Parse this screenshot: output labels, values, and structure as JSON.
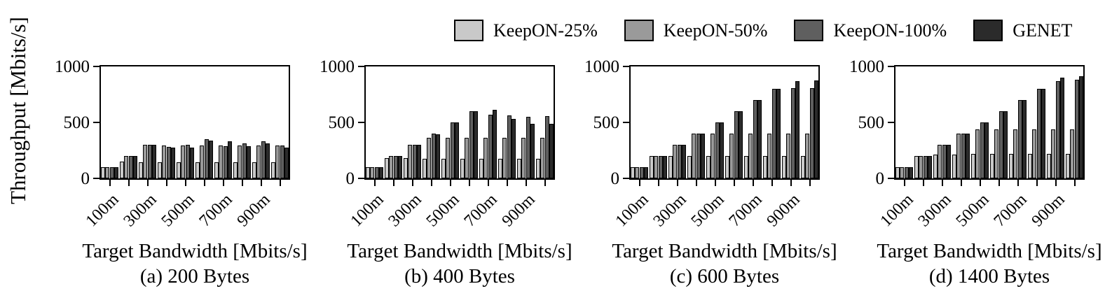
{
  "figure": {
    "ylabel": "Throughput [Mbits/s]"
  },
  "legend": {
    "items": [
      {
        "label": "KeepON-25%",
        "color": "#c9c9c9"
      },
      {
        "label": "KeepON-50%",
        "color": "#9a9a9a"
      },
      {
        "label": "KeepON-100%",
        "color": "#5f5f5f"
      },
      {
        "label": "GENET",
        "color": "#2b2b2b"
      }
    ]
  },
  "chart_data": [
    {
      "type": "bar",
      "title": "(a) 200 Bytes",
      "xlabel": "Target Bandwidth [Mbits/s]",
      "ylabel": "Throughput [Mbits/s]",
      "ylim": [
        0,
        1000
      ],
      "yticks": [
        0,
        500,
        1000
      ],
      "categories": [
        "100m",
        "200m",
        "300m",
        "400m",
        "500m",
        "600m",
        "700m",
        "800m",
        "900m",
        "1000m"
      ],
      "xtick_labels_shown": [
        "100m",
        "300m",
        "500m",
        "700m",
        "900m"
      ],
      "legend_position": "top",
      "grid": false,
      "series": [
        {
          "name": "KeepON-25%",
          "values": [
            100,
            150,
            145,
            145,
            145,
            145,
            145,
            145,
            145,
            145
          ]
        },
        {
          "name": "KeepON-50%",
          "values": [
            100,
            200,
            300,
            295,
            295,
            295,
            295,
            295,
            295,
            295
          ]
        },
        {
          "name": "KeepON-100%",
          "values": [
            100,
            200,
            300,
            280,
            300,
            350,
            290,
            315,
            330,
            295
          ]
        },
        {
          "name": "GENET",
          "values": [
            100,
            200,
            300,
            275,
            275,
            335,
            330,
            285,
            310,
            275
          ]
        }
      ]
    },
    {
      "type": "bar",
      "title": "(b) 400 Bytes",
      "xlabel": "Target Bandwidth [Mbits/s]",
      "ylabel": "Throughput [Mbits/s]",
      "ylim": [
        0,
        1000
      ],
      "yticks": [
        0,
        500,
        1000
      ],
      "categories": [
        "100m",
        "200m",
        "300m",
        "400m",
        "500m",
        "600m",
        "700m",
        "800m",
        "900m",
        "1000m"
      ],
      "xtick_labels_shown": [
        "100m",
        "300m",
        "500m",
        "700m",
        "900m"
      ],
      "legend_position": "top",
      "grid": false,
      "series": [
        {
          "name": "KeepON-25%",
          "values": [
            100,
            180,
            180,
            175,
            175,
            175,
            175,
            175,
            175,
            175
          ]
        },
        {
          "name": "KeepON-50%",
          "values": [
            100,
            200,
            300,
            365,
            365,
            365,
            365,
            365,
            365,
            365
          ]
        },
        {
          "name": "KeepON-100%",
          "values": [
            100,
            200,
            300,
            400,
            500,
            600,
            570,
            560,
            550,
            555
          ]
        },
        {
          "name": "GENET",
          "values": [
            100,
            200,
            300,
            395,
            500,
            600,
            615,
            530,
            485,
            490
          ]
        }
      ]
    },
    {
      "type": "bar",
      "title": "(c) 600 Bytes",
      "xlabel": "Target Bandwidth [Mbits/s]",
      "ylabel": "Throughput [Mbits/s]",
      "ylim": [
        0,
        1000
      ],
      "yticks": [
        0,
        500,
        1000
      ],
      "categories": [
        "100m",
        "200m",
        "300m",
        "400m",
        "500m",
        "600m",
        "700m",
        "800m",
        "900m",
        "1000m"
      ],
      "xtick_labels_shown": [
        "100m",
        "300m",
        "500m",
        "700m",
        "900m"
      ],
      "legend_position": "top",
      "grid": false,
      "series": [
        {
          "name": "KeepON-25%",
          "values": [
            100,
            200,
            200,
            200,
            200,
            200,
            200,
            200,
            200,
            200
          ]
        },
        {
          "name": "KeepON-50%",
          "values": [
            100,
            200,
            300,
            400,
            400,
            400,
            400,
            400,
            400,
            400
          ]
        },
        {
          "name": "KeepON-100%",
          "values": [
            100,
            200,
            300,
            400,
            500,
            600,
            700,
            800,
            805,
            805
          ]
        },
        {
          "name": "GENET",
          "values": [
            100,
            200,
            300,
            400,
            500,
            600,
            700,
            800,
            870,
            875
          ]
        }
      ]
    },
    {
      "type": "bar",
      "title": "(d) 1400 Bytes",
      "xlabel": "Target Bandwidth [Mbits/s]",
      "ylabel": "Throughput [Mbits/s]",
      "ylim": [
        0,
        1000
      ],
      "yticks": [
        0,
        500,
        1000
      ],
      "categories": [
        "100m",
        "200m",
        "300m",
        "400m",
        "500m",
        "600m",
        "700m",
        "800m",
        "900m",
        "1000m"
      ],
      "xtick_labels_shown": [
        "100m",
        "300m",
        "500m",
        "700m",
        "900m"
      ],
      "legend_position": "top",
      "grid": false,
      "series": [
        {
          "name": "KeepON-25%",
          "values": [
            100,
            200,
            210,
            215,
            220,
            220,
            220,
            220,
            220,
            220
          ]
        },
        {
          "name": "KeepON-50%",
          "values": [
            100,
            200,
            300,
            400,
            435,
            440,
            440,
            440,
            440,
            440
          ]
        },
        {
          "name": "KeepON-100%",
          "values": [
            100,
            200,
            300,
            400,
            500,
            600,
            700,
            800,
            870,
            880
          ]
        },
        {
          "name": "GENET",
          "values": [
            100,
            200,
            300,
            400,
            500,
            600,
            700,
            800,
            900,
            910
          ]
        }
      ]
    }
  ]
}
